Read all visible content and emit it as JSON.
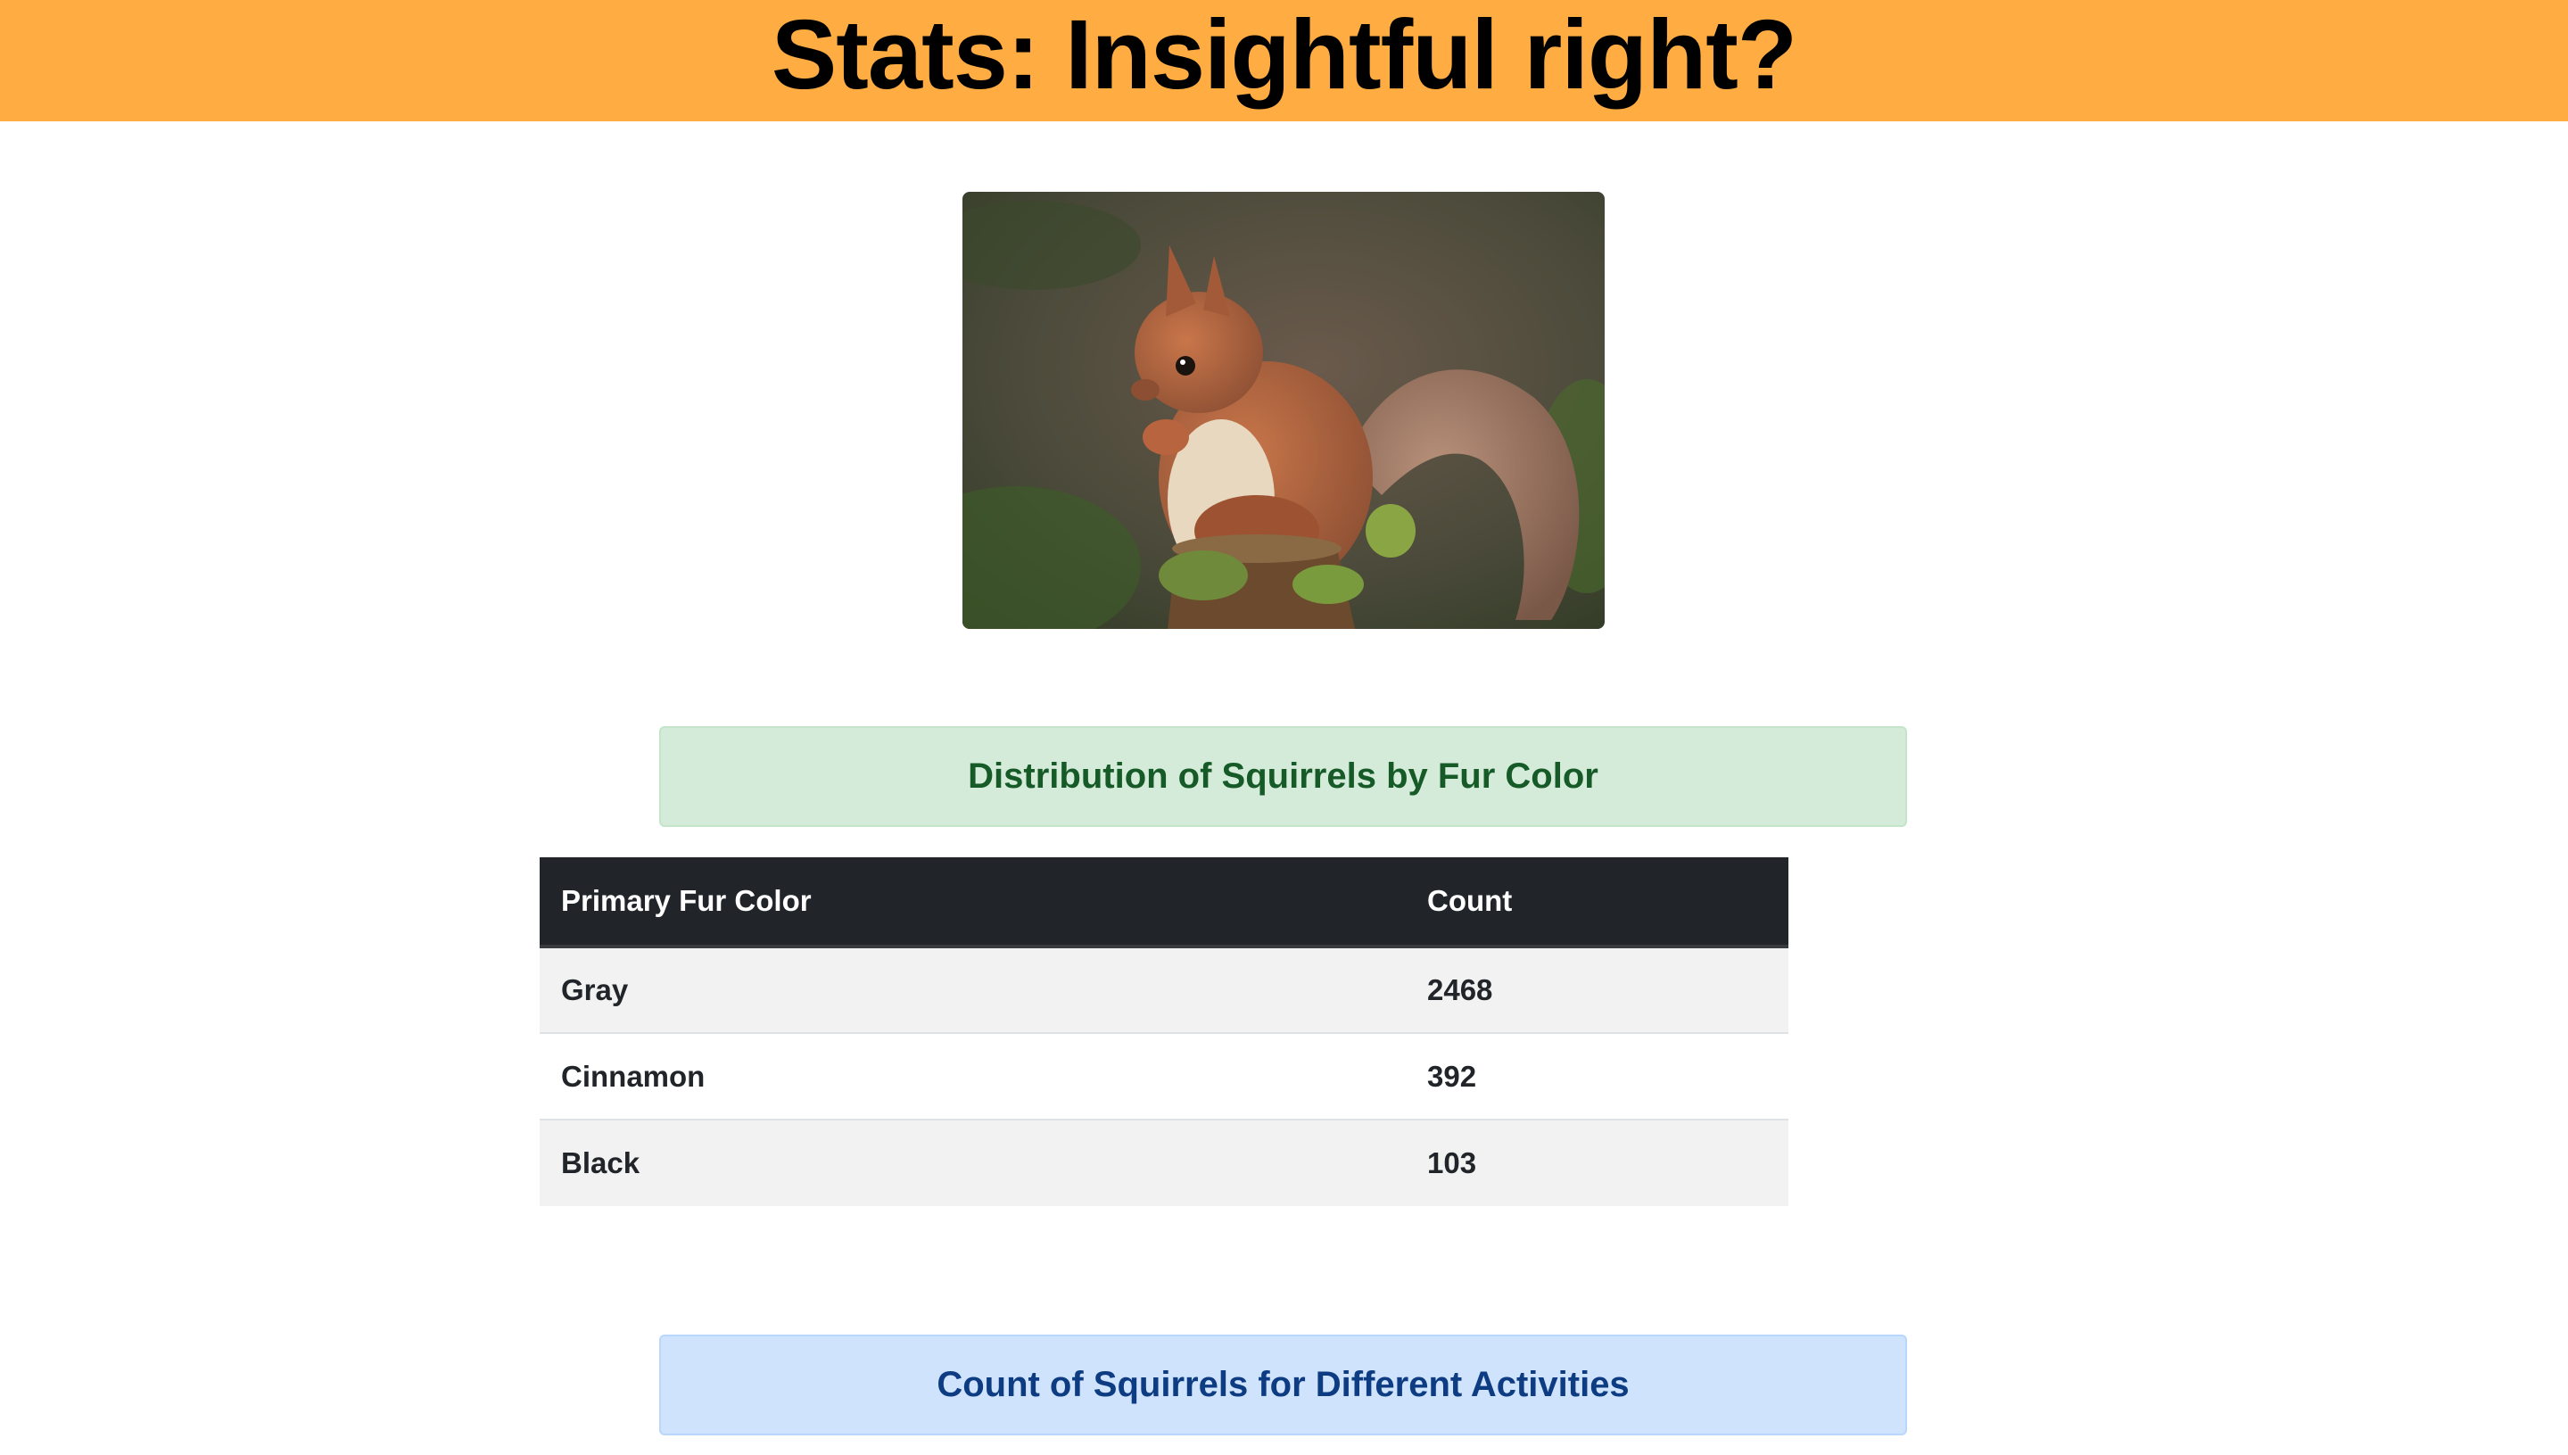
{
  "header": {
    "title": "Stats: Insightful right?"
  },
  "fur_section": {
    "heading": "Distribution of Squirrels by Fur Color",
    "columns": [
      "Primary Fur Color",
      "Count"
    ],
    "rows": [
      {
        "color": "Gray",
        "count": "2468"
      },
      {
        "color": "Cinnamon",
        "count": "392"
      },
      {
        "color": "Black",
        "count": "103"
      }
    ]
  },
  "activity_section": {
    "heading": "Count of Squirrels for Different Activities"
  },
  "colors": {
    "header_bg": "#ffad42",
    "green_alert_bg": "#d4ebd9",
    "green_alert_text": "#165a28",
    "blue_alert_bg": "#cfe3fc",
    "blue_alert_text": "#0d3c82",
    "table_head_bg": "#212529",
    "striped_row_bg": "#f2f2f2"
  }
}
